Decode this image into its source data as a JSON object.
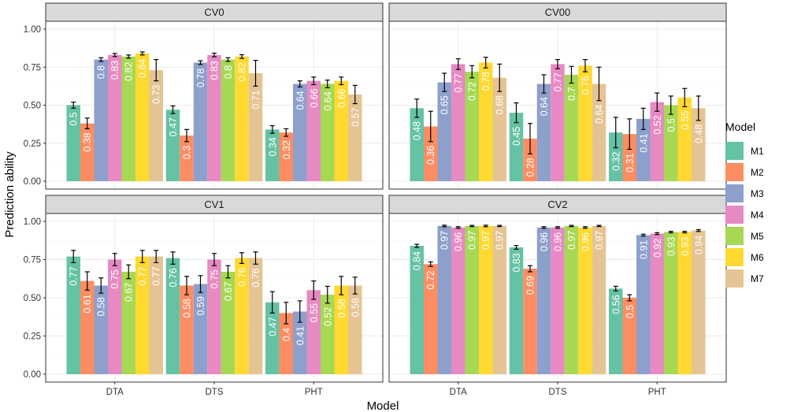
{
  "chart_data": {
    "type": "bar",
    "ylabel": "Prediction ability",
    "xlabel": "Model",
    "ylim": [
      0,
      1
    ],
    "yticks": [
      "0.00",
      "0.25",
      "0.50",
      "0.75",
      "1.00"
    ],
    "categories": [
      "DTA",
      "DTS",
      "PHT"
    ],
    "legend": {
      "title": "Model",
      "position": "right",
      "entries": [
        "M1",
        "M2",
        "M3",
        "M4",
        "M5",
        "M6",
        "M7"
      ],
      "colors": [
        "#66c2a5",
        "#fc8d62",
        "#8da0cb",
        "#e78ac3",
        "#a6d854",
        "#ffd92f",
        "#e5c494"
      ]
    },
    "panels": [
      {
        "title": "CV0",
        "values": [
          [
            0.5,
            0.38,
            0.8,
            0.83,
            0.82,
            0.84,
            0.73
          ],
          [
            0.47,
            0.3,
            0.78,
            0.83,
            0.8,
            0.82,
            0.71
          ],
          [
            0.34,
            0.32,
            0.64,
            0.66,
            0.64,
            0.66,
            0.57
          ]
        ],
        "errors": [
          [
            0.02,
            0.035,
            0.012,
            0.01,
            0.01,
            0.01,
            0.07
          ],
          [
            0.025,
            0.04,
            0.012,
            0.012,
            0.012,
            0.012,
            0.085
          ],
          [
            0.025,
            0.025,
            0.02,
            0.025,
            0.025,
            0.025,
            0.06
          ]
        ]
      },
      {
        "title": "CV00",
        "values": [
          [
            0.48,
            0.36,
            0.65,
            0.77,
            0.72,
            0.78,
            0.68
          ],
          [
            0.45,
            0.28,
            0.64,
            0.77,
            0.7,
            0.76,
            0.64
          ],
          [
            0.32,
            0.31,
            0.41,
            0.52,
            0.5,
            0.55,
            0.48
          ]
        ],
        "errors": [
          [
            0.06,
            0.1,
            0.06,
            0.035,
            0.04,
            0.035,
            0.09
          ],
          [
            0.065,
            0.1,
            0.06,
            0.03,
            0.055,
            0.04,
            0.11
          ],
          [
            0.1,
            0.1,
            0.07,
            0.06,
            0.06,
            0.06,
            0.08
          ]
        ]
      },
      {
        "title": "CV1",
        "values": [
          [
            0.77,
            0.61,
            0.58,
            0.75,
            0.67,
            0.77,
            0.77
          ],
          [
            0.76,
            0.58,
            0.59,
            0.75,
            0.67,
            0.76,
            0.76
          ],
          [
            0.47,
            0.4,
            0.41,
            0.55,
            0.52,
            0.58,
            0.58
          ]
        ],
        "errors": [
          [
            0.04,
            0.06,
            0.05,
            0.04,
            0.045,
            0.04,
            0.04
          ],
          [
            0.04,
            0.06,
            0.055,
            0.04,
            0.04,
            0.035,
            0.04
          ],
          [
            0.07,
            0.07,
            0.07,
            0.06,
            0.055,
            0.06,
            0.055
          ]
        ]
      },
      {
        "title": "CV2",
        "values": [
          [
            0.84,
            0.72,
            0.97,
            0.96,
            0.97,
            0.97,
            0.97
          ],
          [
            0.83,
            0.69,
            0.96,
            0.96,
            0.97,
            0.96,
            0.97
          ],
          [
            0.56,
            0.5,
            0.91,
            0.92,
            0.93,
            0.93,
            0.94
          ]
        ],
        "errors": [
          [
            0.01,
            0.015,
            0.005,
            0.005,
            0.004,
            0.005,
            0.004
          ],
          [
            0.012,
            0.02,
            0.005,
            0.005,
            0.004,
            0.005,
            0.004
          ],
          [
            0.015,
            0.02,
            0.006,
            0.006,
            0.005,
            0.005,
            0.006
          ]
        ]
      }
    ]
  }
}
